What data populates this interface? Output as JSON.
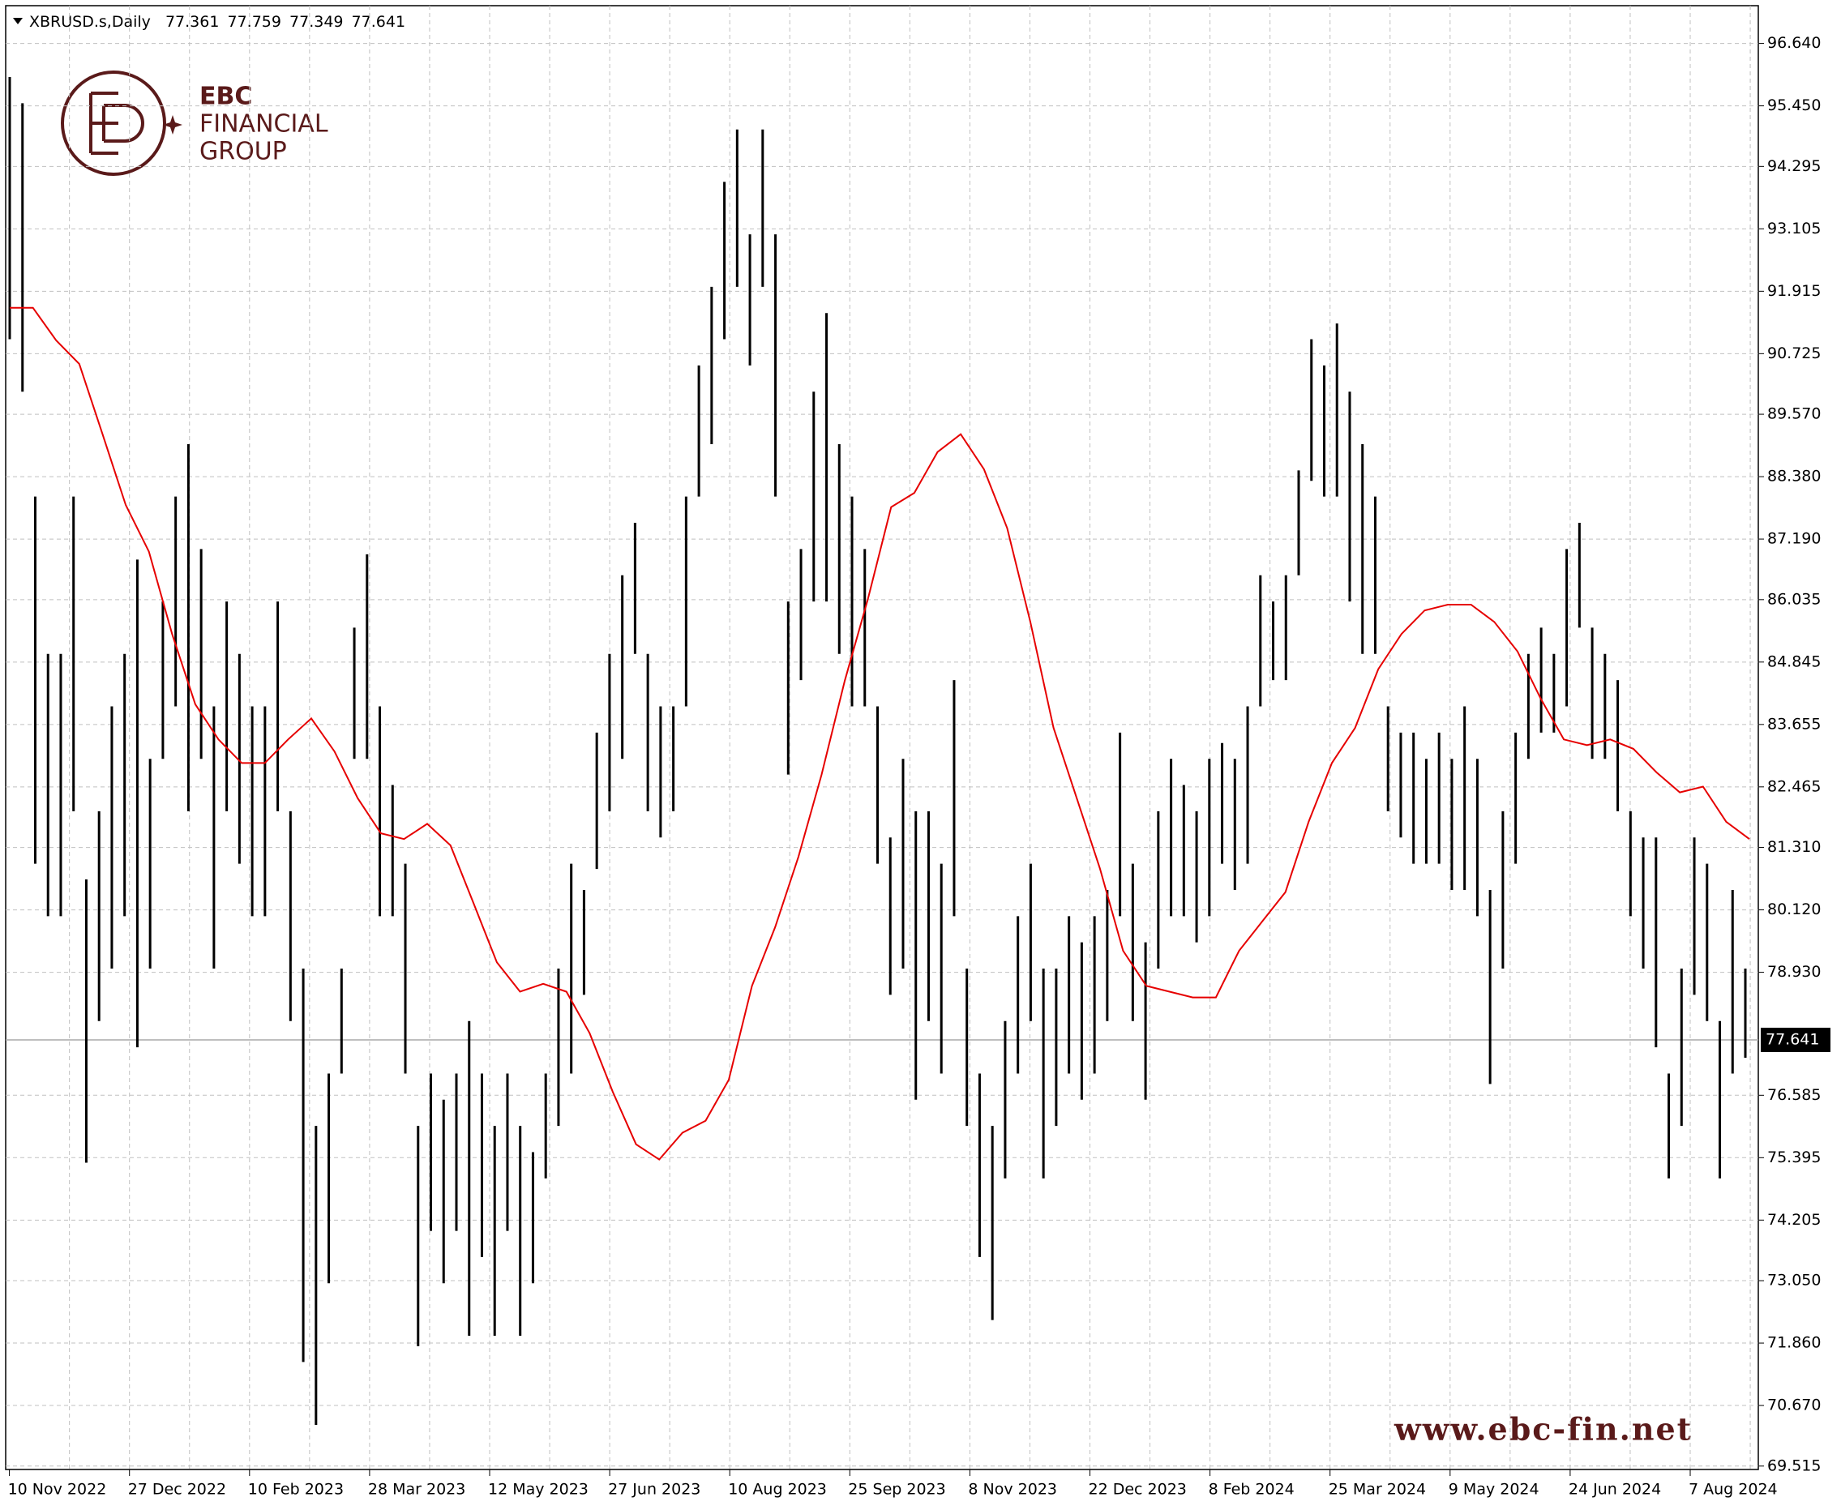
{
  "chart_data": {
    "type": "ohlc",
    "title": "XBRUSD.s,Daily",
    "quote": {
      "open": 77.361,
      "high": 77.759,
      "low": 77.349,
      "close": 77.641
    },
    "categories": [
      "10 Nov 2022",
      "27 Dec 2022",
      "10 Feb 2023",
      "28 Mar 2023",
      "12 May 2023",
      "27 Jun 2023",
      "10 Aug 2023",
      "25 Sep 2023",
      "8 Nov 2023",
      "22 Dec 2023",
      "8 Feb 2024",
      "25 Mar 2024",
      "9 May 2024",
      "24 Jun 2024",
      "7 Aug 2024"
    ],
    "high": [
      96,
      95.5,
      88,
      85,
      85,
      88,
      80.7,
      82,
      84,
      85,
      86.8,
      83,
      86,
      88,
      89,
      87,
      84,
      86,
      85,
      84,
      84,
      86,
      82,
      79,
      76,
      77,
      79,
      85.5,
      86.9,
      84,
      82.5,
      81,
      76,
      77,
      76.5,
      77,
      78,
      77,
      76,
      77,
      76,
      75.5,
      77,
      79,
      81,
      80.5,
      83.5,
      85,
      86.5,
      87.5,
      85,
      84,
      84,
      88,
      90.5,
      92,
      94,
      95,
      93,
      95,
      93,
      86,
      87,
      90,
      91.5,
      89,
      88,
      87,
      84,
      81.5,
      83,
      82,
      82,
      81,
      84.5,
      79,
      77,
      76,
      78,
      80,
      81,
      79,
      79,
      80,
      79.5,
      80,
      80.5,
      83.5,
      81,
      79.5,
      82,
      83,
      82.5,
      82,
      83,
      83.3,
      83,
      84,
      86.5,
      86,
      86.5,
      88.5,
      91,
      90.5,
      91.3,
      90,
      89,
      88,
      84,
      83.5,
      83.5,
      83,
      83.5,
      83,
      84,
      83,
      80.5,
      82,
      83.5,
      85,
      85.5,
      85,
      87,
      87.5,
      85.5,
      85,
      84.5,
      82,
      81.5,
      81.5,
      77,
      79,
      81.5,
      81,
      78,
      80.5,
      79
    ],
    "low": [
      91,
      90,
      81,
      80,
      80,
      82,
      75.3,
      78,
      79,
      80,
      77.5,
      79,
      83,
      84,
      82,
      83,
      79,
      82,
      81,
      80,
      80,
      82,
      78,
      71.5,
      70.3,
      73,
      77,
      83,
      83,
      80,
      80,
      77,
      71.8,
      74,
      73,
      74,
      72,
      73.5,
      72,
      74,
      72,
      73,
      75,
      76,
      77,
      78.5,
      80.9,
      82,
      83,
      85,
      82,
      81.5,
      82,
      84,
      88,
      89,
      91,
      92,
      90.5,
      92,
      88,
      82.7,
      84.5,
      86,
      86,
      85,
      84,
      84,
      81,
      78.5,
      79,
      76.5,
      78,
      77,
      80,
      76,
      73.5,
      72.3,
      75,
      77,
      78,
      75,
      76,
      77,
      76.5,
      77,
      78,
      80,
      78,
      76.5,
      79,
      80,
      80,
      79.5,
      80,
      81,
      80.5,
      81,
      84,
      84.5,
      84.5,
      86.5,
      88.3,
      88,
      88,
      86,
      85,
      85,
      82,
      81.5,
      81,
      81,
      81,
      80.5,
      80.5,
      80,
      76.8,
      79,
      81,
      83,
      83.5,
      83.5,
      84,
      85.5,
      83,
      83,
      82,
      80,
      79,
      77.5,
      75,
      76,
      78.5,
      78,
      75,
      77,
      77.3
    ],
    "bar_color": "#000000",
    "ma_values": [
      91.6,
      91.6,
      90.98,
      90.53,
      89.19,
      87.84,
      86.95,
      85.38,
      84.04,
      83.37,
      82.92,
      82.92,
      83.37,
      83.77,
      83.14,
      82.25,
      81.58,
      81.47,
      81.76,
      81.35,
      80.24,
      79.12,
      78.56,
      78.71,
      78.56,
      77.77,
      76.65,
      75.65,
      75.36,
      75.87,
      76.1,
      76.88,
      78.67,
      79.79,
      81.13,
      82.7,
      84.49,
      86.05,
      87.8,
      88.07,
      88.85,
      89.19,
      88.52,
      87.4,
      85.61,
      83.59,
      82.25,
      80.91,
      79.34,
      78.67,
      78.56,
      78.45,
      78.45,
      79.34,
      79.9,
      80.46,
      81.8,
      82.92,
      83.59,
      84.71,
      85.38,
      85.83,
      85.94,
      85.94,
      85.61,
      85.05,
      84.15,
      83.37,
      83.26,
      83.37,
      83.19,
      82.74,
      82.36,
      82.47,
      81.8,
      81.47
    ],
    "ma_color": "#e60000",
    "last_price": 77.641,
    "ylim": [
      69.45,
      97.36
    ],
    "yticks": [
      {
        "value": 96.64,
        "label": "96.640"
      },
      {
        "value": 95.45,
        "label": "95.450"
      },
      94.295,
      93.105,
      91.915,
      90.725,
      {
        "value": 89.57,
        "label": "89.570"
      },
      {
        "value": 88.38,
        "label": "88.380"
      },
      {
        "value": 87.19,
        "label": "87.190"
      },
      86.035,
      84.845,
      83.655,
      82.465,
      {
        "value": 81.31,
        "label": "81.310"
      },
      {
        "value": 80.12,
        "label": "80.120"
      },
      {
        "value": 78.93,
        "label": "78.930"
      },
      76.585,
      75.395,
      74.205,
      {
        "value": 73.05,
        "label": "73.050"
      },
      {
        "value": 71.86,
        "label": "71.860"
      },
      {
        "value": 70.67,
        "label": "70.670"
      },
      69.515
    ],
    "grid": true
  },
  "watermark": {
    "brand": "EBC",
    "line2": "FINANCIAL",
    "line3": "GROUP",
    "url": "www.ebc-fin.net"
  }
}
